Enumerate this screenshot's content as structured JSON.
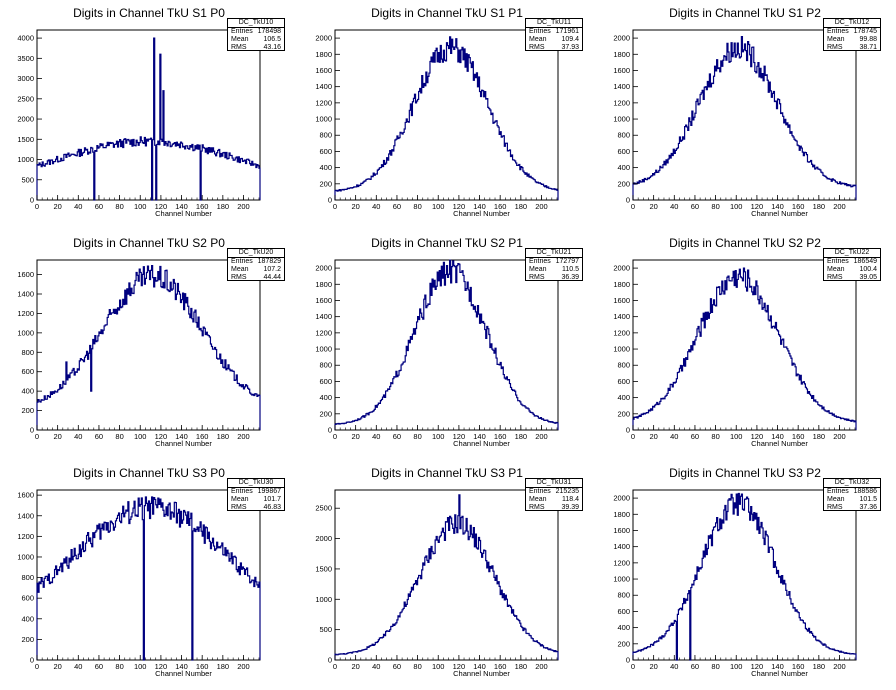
{
  "chart_data": [
    {
      "type": "histogram",
      "title": "Digits in Channel TkU S1 P0",
      "xlabel": "Channel Number",
      "ylabel": "",
      "stats": {
        "name": "DC_TkU10",
        "entries": "178498",
        "mean": "106.5",
        "rms": "43.16"
      },
      "xlim": [
        0,
        216
      ],
      "ylim": [
        0,
        4200
      ],
      "yticks": [
        0,
        500,
        1000,
        1500,
        2000,
        2500,
        3000,
        3500,
        4000
      ],
      "xticks": [
        0,
        20,
        40,
        60,
        80,
        100,
        120,
        140,
        160,
        180,
        200
      ],
      "shape": "broad",
      "peak": 1450,
      "center": 108,
      "sigma": 70,
      "base": 180,
      "spikes": [
        {
          "x": 113,
          "v": 4000
        },
        {
          "x": 119,
          "v": 3600
        },
        {
          "x": 122,
          "v": 2700
        },
        {
          "x": 111,
          "v": 0
        },
        {
          "x": 115,
          "v": 0
        },
        {
          "x": 55,
          "v": 0
        },
        {
          "x": 158,
          "v": 0
        }
      ]
    },
    {
      "type": "histogram",
      "title": "Digits in Channel TkU S1 P1",
      "xlabel": "Channel Number",
      "ylabel": "",
      "stats": {
        "name": "DC_TkU11",
        "entries": "171961",
        "mean": "109.4",
        "rms": "37.93"
      },
      "xlim": [
        0,
        216
      ],
      "ylim": [
        0,
        2100
      ],
      "yticks": [
        0,
        200,
        400,
        600,
        800,
        1000,
        1200,
        1400,
        1600,
        1800,
        2000
      ],
      "xticks": [
        0,
        20,
        40,
        60,
        80,
        100,
        120,
        140,
        160,
        180,
        200
      ],
      "shape": "gauss",
      "peak": 1880,
      "center": 112,
      "sigma": 36,
      "base": 100,
      "spikes": []
    },
    {
      "type": "histogram",
      "title": "Digits in Channel TkU S1 P2",
      "xlabel": "Channel Number",
      "ylabel": "",
      "stats": {
        "name": "DC_TkU12",
        "entries": "178745",
        "mean": "99.88",
        "rms": "38.71"
      },
      "xlim": [
        0,
        216
      ],
      "ylim": [
        0,
        2100
      ],
      "yticks": [
        0,
        200,
        400,
        600,
        800,
        1000,
        1200,
        1400,
        1600,
        1800,
        2000
      ],
      "xticks": [
        0,
        20,
        40,
        60,
        80,
        100,
        120,
        140,
        160,
        180,
        200
      ],
      "shape": "gauss",
      "peak": 1880,
      "center": 102,
      "sigma": 38,
      "base": 150,
      "spikes": []
    },
    {
      "type": "histogram",
      "title": "Digits in Channel TkU S2 P0",
      "xlabel": "Channel Number",
      "ylabel": "",
      "stats": {
        "name": "DC_TkU20",
        "entries": "187829",
        "mean": "107.2",
        "rms": "44.44"
      },
      "xlim": [
        0,
        216
      ],
      "ylim": [
        0,
        1750
      ],
      "yticks": [
        0,
        200,
        400,
        600,
        800,
        1000,
        1200,
        1400,
        1600
      ],
      "xticks": [
        0,
        20,
        40,
        60,
        80,
        100,
        120,
        140,
        160,
        180,
        200
      ],
      "shape": "gauss",
      "peak": 1580,
      "center": 112,
      "sigma": 48,
      "base": 200,
      "spikes": [
        {
          "x": 28,
          "v": 700
        },
        {
          "x": 52,
          "v": 400
        }
      ]
    },
    {
      "type": "histogram",
      "title": "Digits in Channel TkU S2 P1",
      "xlabel": "Channel Number",
      "ylabel": "",
      "stats": {
        "name": "DC_TkU21",
        "entries": "172797",
        "mean": "110.5",
        "rms": "36.39"
      },
      "xlim": [
        0,
        216
      ],
      "ylim": [
        0,
        2100
      ],
      "yticks": [
        0,
        200,
        400,
        600,
        800,
        1000,
        1200,
        1400,
        1600,
        1800,
        2000
      ],
      "xticks": [
        0,
        20,
        40,
        60,
        80,
        100,
        120,
        140,
        160,
        180,
        200
      ],
      "shape": "gauss",
      "peak": 1960,
      "center": 112,
      "sigma": 35,
      "base": 60,
      "spikes": []
    },
    {
      "type": "histogram",
      "title": "Digits in Channel TkU S2 P2",
      "xlabel": "Channel Number",
      "ylabel": "",
      "stats": {
        "name": "DC_TkU22",
        "entries": "186549",
        "mean": "100.4",
        "rms": "39.05"
      },
      "xlim": [
        0,
        216
      ],
      "ylim": [
        0,
        2100
      ],
      "yticks": [
        0,
        200,
        400,
        600,
        800,
        1000,
        1200,
        1400,
        1600,
        1800,
        2000
      ],
      "xticks": [
        0,
        20,
        40,
        60,
        80,
        100,
        120,
        140,
        160,
        180,
        200
      ],
      "shape": "gauss",
      "peak": 1900,
      "center": 102,
      "sigma": 39,
      "base": 80,
      "spikes": []
    },
    {
      "type": "histogram",
      "title": "Digits in Channel TkU S3 P0",
      "xlabel": "Channel Number",
      "ylabel": "",
      "stats": {
        "name": "DC_TkU30",
        "entries": "199867",
        "mean": "101.7",
        "rms": "46.83"
      },
      "xlim": [
        0,
        216
      ],
      "ylim": [
        0,
        1650
      ],
      "yticks": [
        0,
        200,
        400,
        600,
        800,
        1000,
        1200,
        1400,
        1600
      ],
      "xticks": [
        0,
        20,
        40,
        60,
        80,
        100,
        120,
        140,
        160,
        180,
        200
      ],
      "shape": "broad",
      "peak": 1480,
      "center": 110,
      "sigma": 55,
      "base": 300,
      "spikes": [
        {
          "x": 103,
          "v": 0
        },
        {
          "x": 150,
          "v": 0
        },
        {
          "x": 4,
          "v": 800
        }
      ]
    },
    {
      "type": "histogram",
      "title": "Digits in Channel TkU S3 P1",
      "xlabel": "Channel Number",
      "ylabel": "",
      "stats": {
        "name": "DC_TkU31",
        "entries": "215235",
        "mean": "118.4",
        "rms": "39.39"
      },
      "xlim": [
        0,
        216
      ],
      "ylim": [
        0,
        2800
      ],
      "yticks": [
        0,
        500,
        1000,
        1500,
        2000,
        2500
      ],
      "xticks": [
        0,
        20,
        40,
        60,
        80,
        100,
        120,
        140,
        160,
        180,
        200
      ],
      "shape": "gauss",
      "peak": 2250,
      "center": 118,
      "sigma": 36,
      "base": 80,
      "spikes": [
        {
          "x": 120,
          "v": 2720
        }
      ]
    },
    {
      "type": "histogram",
      "title": "Digits in Channel TkU S3 P2",
      "xlabel": "Channel Number",
      "ylabel": "",
      "stats": {
        "name": "DC_TkU32",
        "entries": "188586",
        "mean": "101.5",
        "rms": "37.36"
      },
      "xlim": [
        0,
        216
      ],
      "ylim": [
        0,
        2100
      ],
      "yticks": [
        0,
        200,
        400,
        600,
        800,
        1000,
        1200,
        1400,
        1600,
        1800,
        2000
      ],
      "xticks": [
        0,
        20,
        40,
        60,
        80,
        100,
        120,
        140,
        160,
        180,
        200
      ],
      "shape": "gauss",
      "peak": 1930,
      "center": 102,
      "sigma": 36,
      "base": 60,
      "spikes": [
        {
          "x": 42,
          "v": 0
        },
        {
          "x": 55,
          "v": 0
        }
      ]
    }
  ],
  "labels": {
    "entries": "Entries",
    "mean": "Mean",
    "rms": "RMS"
  },
  "line_color": "#00007f"
}
